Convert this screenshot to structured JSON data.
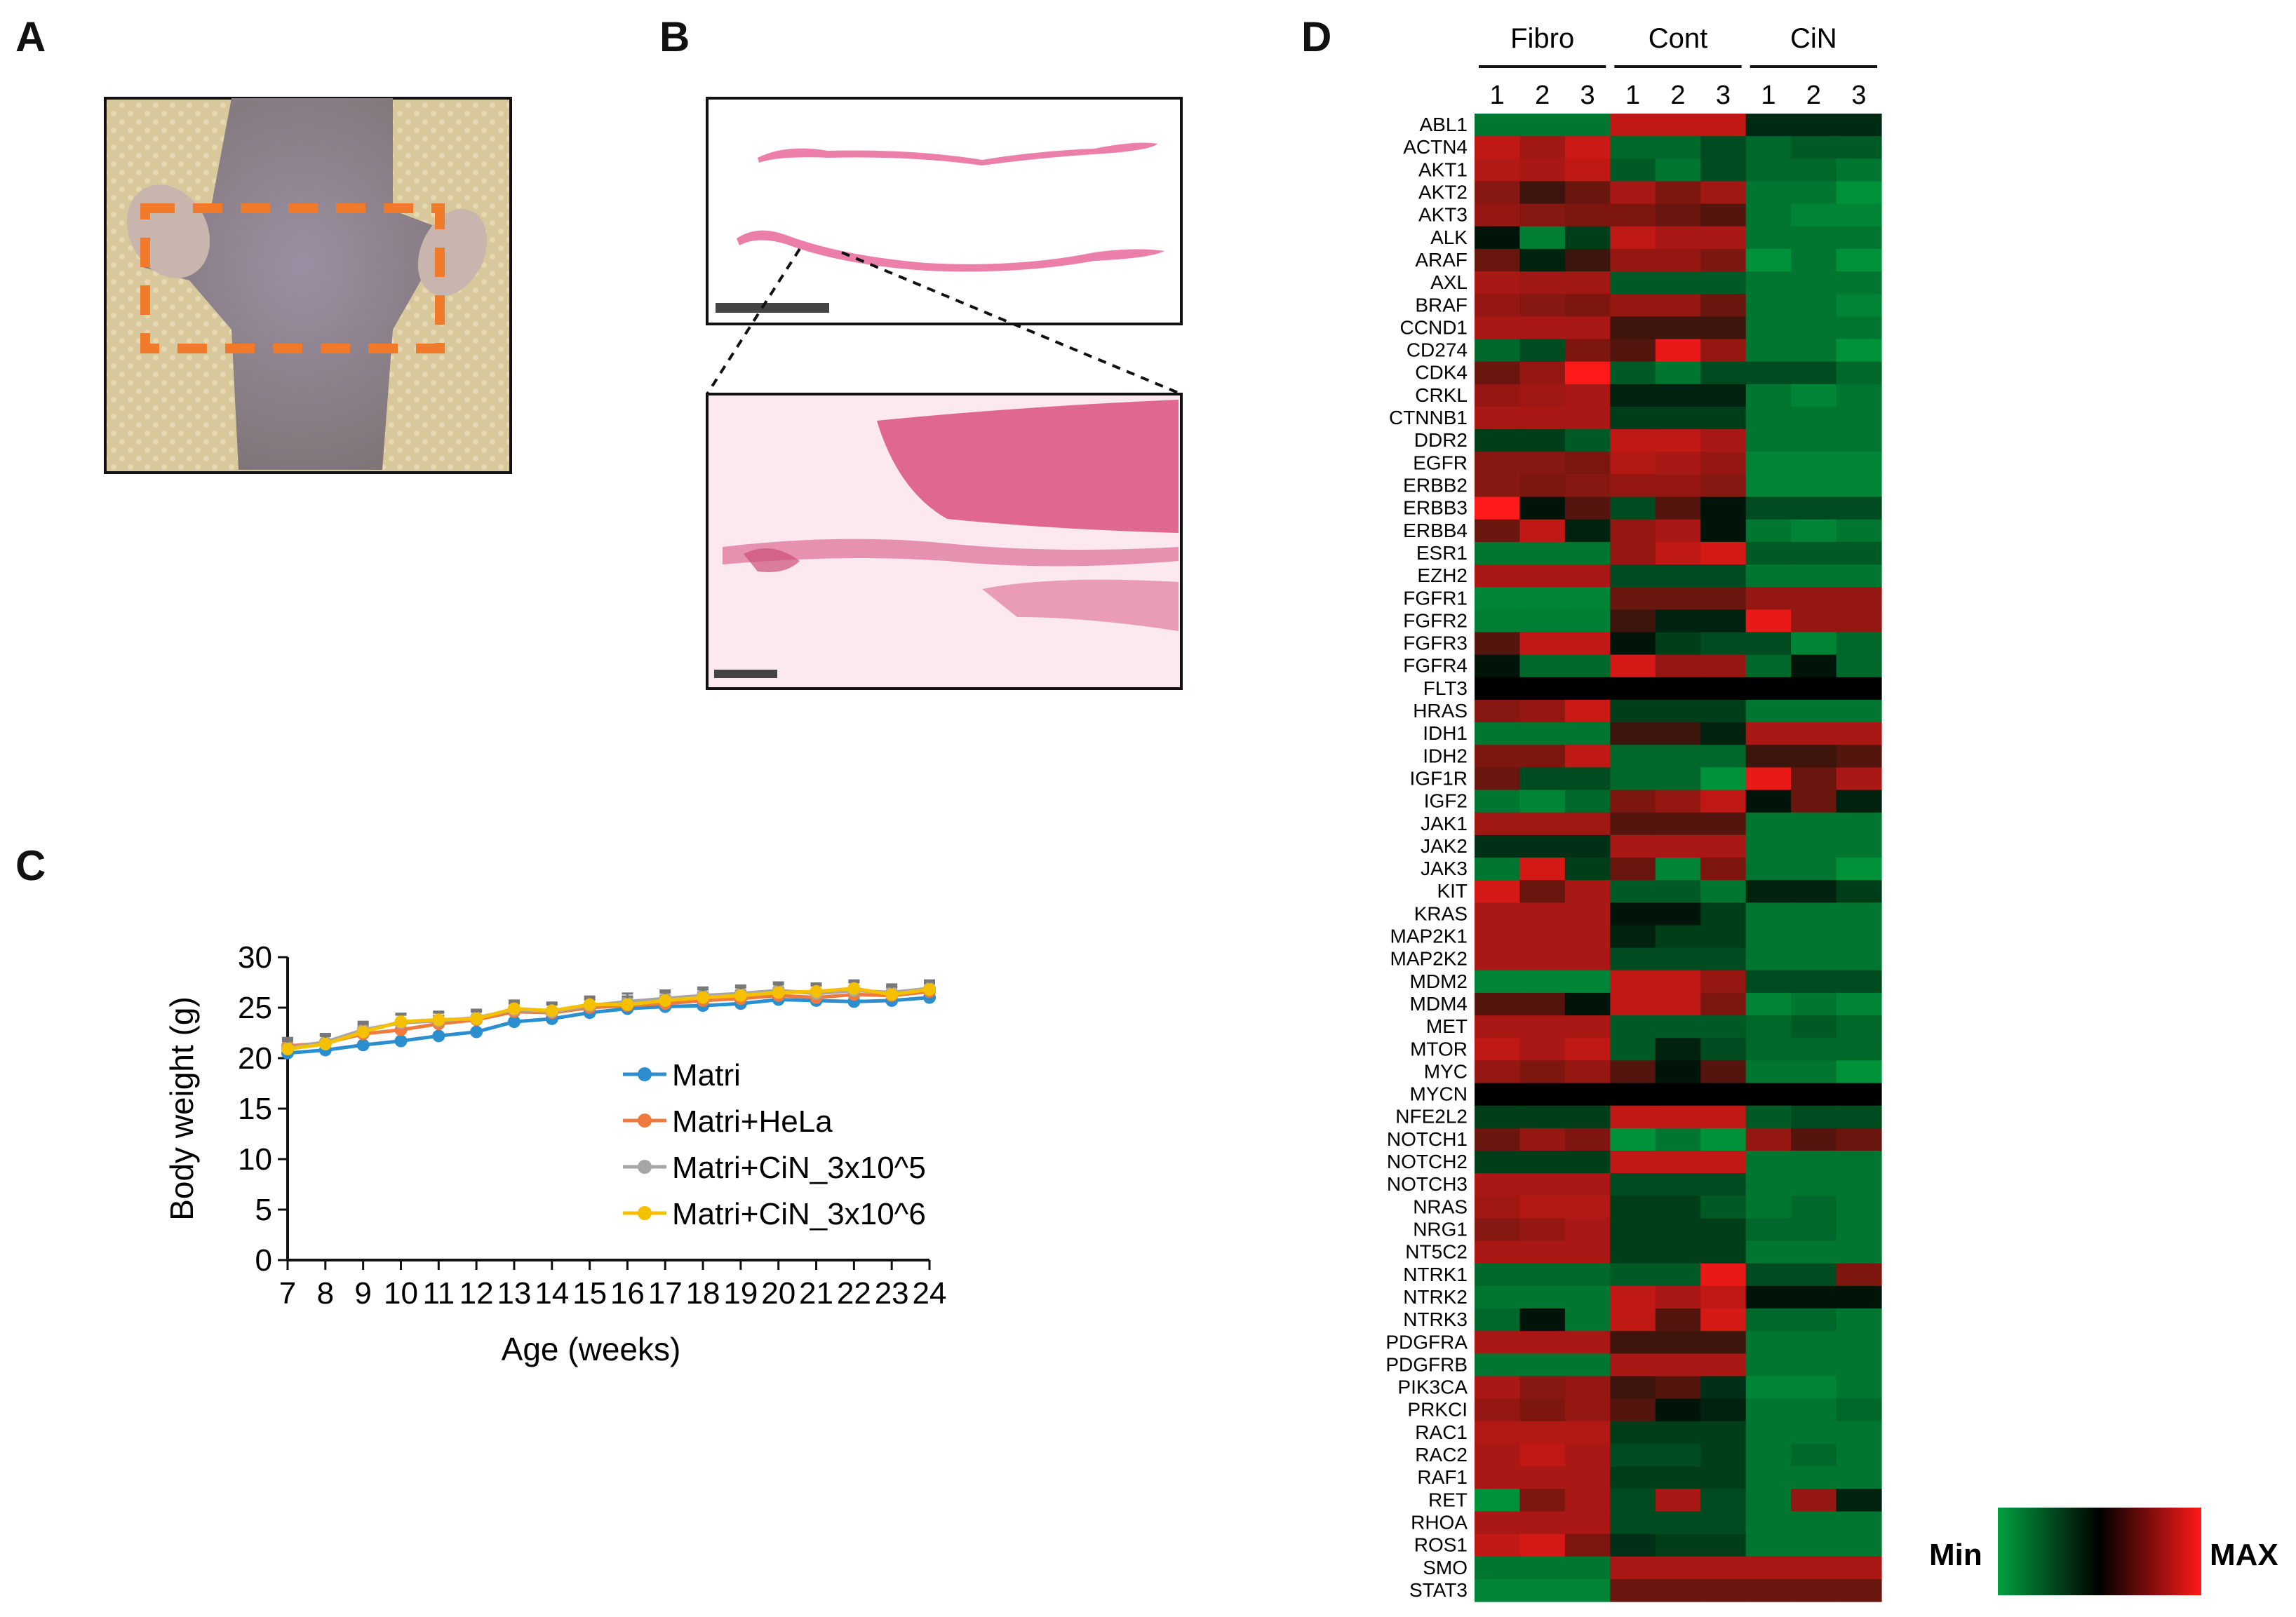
{
  "panels": {
    "a": "A",
    "b": "B",
    "c": "C",
    "d": "D"
  },
  "colors": {
    "dash_box": "#f07a2a",
    "hist_pink": "#e9689a",
    "skin": "#9a8f96"
  },
  "chart_data": {
    "type": "line",
    "xlabel": "Age (weeks)",
    "ylabel": "Body weight (g)",
    "x": [
      7,
      8,
      9,
      10,
      11,
      12,
      13,
      14,
      15,
      16,
      17,
      18,
      19,
      20,
      21,
      22,
      23,
      24
    ],
    "ylim": [
      0,
      30
    ],
    "yticks": [
      0,
      5,
      10,
      15,
      20,
      25,
      30
    ],
    "legend_position": "center-right",
    "series": [
      {
        "name": "Matri",
        "color": "#2b8fcf",
        "values": [
          20.5,
          20.8,
          21.3,
          21.7,
          22.2,
          22.6,
          23.6,
          23.9,
          24.5,
          24.9,
          25.1,
          25.2,
          25.4,
          25.8,
          25.7,
          25.6,
          25.7,
          26.0
        ]
      },
      {
        "name": "Matri+HeLa",
        "color": "#f07a3c",
        "values": [
          21.2,
          21.5,
          22.4,
          22.8,
          23.4,
          23.8,
          24.6,
          24.5,
          25.0,
          25.2,
          25.4,
          25.7,
          25.9,
          26.2,
          26.0,
          26.3,
          26.2,
          26.6
        ]
      },
      {
        "name": "Matri+CiN_3x10^5",
        "color": "#a6a6a6",
        "values": [
          21.0,
          21.6,
          22.8,
          23.5,
          23.7,
          24.0,
          24.8,
          24.6,
          25.2,
          25.6,
          25.9,
          26.2,
          26.4,
          26.7,
          26.4,
          26.7,
          26.5,
          26.9
        ]
      },
      {
        "name": "Matri+CiN_3x10^6",
        "color": "#f5c000",
        "values": [
          20.9,
          21.4,
          22.6,
          23.6,
          23.8,
          23.9,
          24.9,
          24.7,
          25.3,
          25.3,
          25.7,
          26.0,
          26.2,
          26.5,
          26.6,
          26.9,
          26.3,
          26.8
        ]
      }
    ]
  },
  "heatmap": {
    "groups": [
      "Fibro",
      "Cont",
      "CiN"
    ],
    "replicates": [
      "1",
      "2",
      "3"
    ],
    "genes": [
      "ABL1",
      "ACTN4",
      "AKT1",
      "AKT2",
      "AKT3",
      "ALK",
      "ARAF",
      "AXL",
      "BRAF",
      "CCND1",
      "CD274",
      "CDK4",
      "CRKL",
      "CTNNB1",
      "DDR2",
      "EGFR",
      "ERBB2",
      "ERBB3",
      "ERBB4",
      "ESR1",
      "EZH2",
      "FGFR1",
      "FGFR2",
      "FGFR3",
      "FGFR4",
      "FLT3",
      "HRAS",
      "IDH1",
      "IDH2",
      "IGF1R",
      "IGF2",
      "JAK1",
      "JAK2",
      "JAK3",
      "KIT",
      "KRAS",
      "MAP2K1",
      "MAP2K2",
      "MDM2",
      "MDM4",
      "MET",
      "MTOR",
      "MYC",
      "MYCN",
      "NFE2L2",
      "NOTCH1",
      "NOTCH2",
      "NOTCH3",
      "NRAS",
      "NRG1",
      "NT5C2",
      "NTRK1",
      "NTRK2",
      "NTRK3",
      "PDGFRA",
      "PDGFRB",
      "PIK3CA",
      "PRKCI",
      "RAC1",
      "RAC2",
      "RAF1",
      "RET",
      "RHOA",
      "ROS1",
      "SMO",
      "STAT3"
    ],
    "values": [
      [
        0.15,
        0.15,
        0.15,
        0.85,
        0.85,
        0.85,
        0.42,
        0.42,
        0.42
      ],
      [
        0.85,
        0.78,
        0.88,
        0.2,
        0.2,
        0.3,
        0.2,
        0.25,
        0.25
      ],
      [
        0.82,
        0.8,
        0.85,
        0.25,
        0.15,
        0.3,
        0.2,
        0.2,
        0.15
      ],
      [
        0.72,
        0.55,
        0.65,
        0.8,
        0.7,
        0.78,
        0.15,
        0.15,
        0.05
      ],
      [
        0.75,
        0.72,
        0.7,
        0.7,
        0.65,
        0.6,
        0.15,
        0.1,
        0.1
      ],
      [
        0.5,
        0.12,
        0.35,
        0.85,
        0.8,
        0.8,
        0.15,
        0.15,
        0.15
      ],
      [
        0.65,
        0.45,
        0.55,
        0.75,
        0.75,
        0.7,
        0.05,
        0.15,
        0.05
      ],
      [
        0.8,
        0.78,
        0.78,
        0.25,
        0.25,
        0.25,
        0.15,
        0.15,
        0.15
      ],
      [
        0.75,
        0.72,
        0.7,
        0.75,
        0.75,
        0.65,
        0.15,
        0.15,
        0.1
      ],
      [
        0.8,
        0.8,
        0.8,
        0.55,
        0.55,
        0.55,
        0.15,
        0.15,
        0.15
      ],
      [
        0.2,
        0.3,
        0.7,
        0.6,
        0.95,
        0.75,
        0.15,
        0.15,
        0.05
      ],
      [
        0.65,
        0.75,
        1.0,
        0.25,
        0.15,
        0.3,
        0.3,
        0.3,
        0.2
      ],
      [
        0.75,
        0.78,
        0.8,
        0.45,
        0.45,
        0.45,
        0.15,
        0.1,
        0.15
      ],
      [
        0.8,
        0.8,
        0.8,
        0.35,
        0.35,
        0.35,
        0.15,
        0.15,
        0.15
      ],
      [
        0.35,
        0.35,
        0.25,
        0.85,
        0.85,
        0.8,
        0.15,
        0.15,
        0.15
      ],
      [
        0.72,
        0.72,
        0.7,
        0.82,
        0.8,
        0.75,
        0.1,
        0.1,
        0.1
      ],
      [
        0.72,
        0.7,
        0.72,
        0.75,
        0.75,
        0.72,
        0.1,
        0.1,
        0.1
      ],
      [
        1.0,
        0.5,
        0.6,
        0.3,
        0.6,
        0.5,
        0.3,
        0.3,
        0.3
      ],
      [
        0.65,
        0.85,
        0.45,
        0.75,
        0.8,
        0.5,
        0.15,
        0.1,
        0.15
      ],
      [
        0.15,
        0.15,
        0.15,
        0.75,
        0.85,
        0.9,
        0.25,
        0.25,
        0.25
      ],
      [
        0.8,
        0.8,
        0.8,
        0.3,
        0.3,
        0.3,
        0.15,
        0.15,
        0.15
      ],
      [
        0.1,
        0.1,
        0.1,
        0.65,
        0.65,
        0.65,
        0.75,
        0.75,
        0.75
      ],
      [
        0.12,
        0.12,
        0.12,
        0.55,
        0.45,
        0.45,
        0.95,
        0.75,
        0.75
      ],
      [
        0.6,
        0.85,
        0.85,
        0.5,
        0.35,
        0.3,
        0.3,
        0.1,
        0.2
      ],
      [
        0.5,
        0.2,
        0.2,
        0.9,
        0.75,
        0.75,
        0.2,
        0.5,
        0.2
      ],
      [
        -1,
        -1,
        -1,
        -1,
        -1,
        -1,
        -1,
        -1,
        -1
      ],
      [
        0.72,
        0.75,
        0.88,
        0.35,
        0.35,
        0.35,
        0.15,
        0.15,
        0.15
      ],
      [
        0.15,
        0.15,
        0.15,
        0.55,
        0.55,
        0.45,
        0.8,
        0.8,
        0.8
      ],
      [
        0.7,
        0.7,
        0.85,
        0.2,
        0.2,
        0.2,
        0.55,
        0.55,
        0.6
      ],
      [
        0.65,
        0.3,
        0.3,
        0.2,
        0.2,
        0.05,
        0.95,
        0.65,
        0.8
      ],
      [
        0.15,
        0.1,
        0.2,
        0.7,
        0.75,
        0.85,
        0.5,
        0.65,
        0.45
      ],
      [
        0.78,
        0.78,
        0.78,
        0.6,
        0.6,
        0.6,
        0.15,
        0.15,
        0.15
      ],
      [
        0.4,
        0.4,
        0.4,
        0.8,
        0.8,
        0.8,
        0.15,
        0.15,
        0.15
      ],
      [
        0.15,
        0.9,
        0.35,
        0.65,
        0.1,
        0.7,
        0.15,
        0.15,
        0.05
      ],
      [
        0.9,
        0.65,
        0.8,
        0.25,
        0.25,
        0.15,
        0.45,
        0.45,
        0.35
      ],
      [
        0.8,
        0.8,
        0.8,
        0.5,
        0.5,
        0.35,
        0.15,
        0.15,
        0.15
      ],
      [
        0.8,
        0.8,
        0.8,
        0.45,
        0.35,
        0.35,
        0.15,
        0.15,
        0.15
      ],
      [
        0.8,
        0.8,
        0.8,
        0.3,
        0.3,
        0.3,
        0.15,
        0.15,
        0.15
      ],
      [
        0.1,
        0.1,
        0.1,
        0.85,
        0.85,
        0.75,
        0.3,
        0.3,
        0.3
      ],
      [
        0.6,
        0.6,
        0.5,
        0.85,
        0.85,
        0.7,
        0.1,
        0.15,
        0.1
      ],
      [
        0.8,
        0.8,
        0.8,
        0.25,
        0.25,
        0.25,
        0.2,
        0.25,
        0.2
      ],
      [
        0.85,
        0.8,
        0.85,
        0.25,
        0.45,
        0.3,
        0.2,
        0.2,
        0.2
      ],
      [
        0.75,
        0.7,
        0.75,
        0.6,
        0.5,
        0.6,
        0.15,
        0.15,
        0.05
      ],
      [
        -1,
        -1,
        -1,
        -1,
        -1,
        -1,
        -1,
        -1,
        -1
      ],
      [
        0.35,
        0.35,
        0.35,
        0.85,
        0.85,
        0.85,
        0.25,
        0.3,
        0.3
      ],
      [
        0.65,
        0.75,
        0.7,
        0.05,
        0.15,
        0.05,
        0.75,
        0.6,
        0.65
      ],
      [
        0.35,
        0.35,
        0.35,
        0.85,
        0.85,
        0.85,
        0.15,
        0.15,
        0.15
      ],
      [
        0.8,
        0.8,
        0.8,
        0.3,
        0.3,
        0.3,
        0.15,
        0.15,
        0.15
      ],
      [
        0.78,
        0.82,
        0.82,
        0.35,
        0.35,
        0.25,
        0.15,
        0.2,
        0.15
      ],
      [
        0.72,
        0.75,
        0.8,
        0.35,
        0.35,
        0.35,
        0.2,
        0.2,
        0.15
      ],
      [
        0.8,
        0.8,
        0.8,
        0.35,
        0.35,
        0.35,
        0.15,
        0.15,
        0.15
      ],
      [
        0.2,
        0.2,
        0.2,
        0.25,
        0.25,
        0.95,
        0.3,
        0.3,
        0.7
      ],
      [
        0.15,
        0.15,
        0.15,
        0.85,
        0.8,
        0.85,
        0.5,
        0.5,
        0.5
      ],
      [
        0.2,
        0.5,
        0.15,
        0.85,
        0.6,
        0.9,
        0.2,
        0.2,
        0.15
      ],
      [
        0.8,
        0.8,
        0.8,
        0.55,
        0.55,
        0.55,
        0.15,
        0.15,
        0.15
      ],
      [
        0.15,
        0.15,
        0.15,
        0.8,
        0.8,
        0.8,
        0.15,
        0.15,
        0.15
      ],
      [
        0.8,
        0.72,
        0.75,
        0.55,
        0.6,
        0.4,
        0.1,
        0.1,
        0.15
      ],
      [
        0.75,
        0.7,
        0.75,
        0.6,
        0.5,
        0.45,
        0.15,
        0.15,
        0.2
      ],
      [
        0.82,
        0.82,
        0.82,
        0.35,
        0.35,
        0.35,
        0.15,
        0.15,
        0.15
      ],
      [
        0.8,
        0.85,
        0.8,
        0.3,
        0.3,
        0.35,
        0.15,
        0.2,
        0.15
      ],
      [
        0.8,
        0.8,
        0.8,
        0.35,
        0.35,
        0.35,
        0.15,
        0.15,
        0.15
      ],
      [
        0.05,
        0.7,
        0.8,
        0.3,
        0.8,
        0.3,
        0.15,
        0.75,
        0.45
      ],
      [
        0.8,
        0.8,
        0.8,
        0.3,
        0.3,
        0.3,
        0.15,
        0.15,
        0.15
      ],
      [
        0.85,
        0.9,
        0.7,
        0.4,
        0.35,
        0.35,
        0.15,
        0.15,
        0.15
      ],
      [
        0.15,
        0.15,
        0.15,
        0.8,
        0.8,
        0.8,
        0.8,
        0.8,
        0.8
      ],
      [
        0.1,
        0.1,
        0.1,
        0.65,
        0.65,
        0.65,
        0.65,
        0.65,
        0.65
      ]
    ],
    "legend_min": "Min",
    "legend_max": "MAX"
  }
}
